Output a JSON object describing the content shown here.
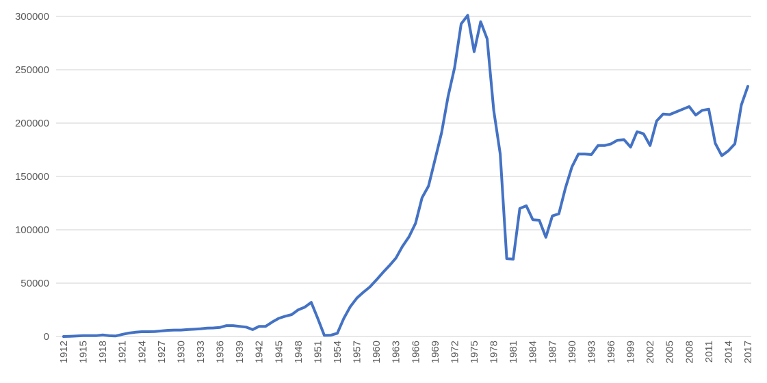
{
  "chart_data": {
    "type": "line",
    "title": "",
    "xlabel": "",
    "ylabel": "",
    "ylim": [
      0,
      300000
    ],
    "yticks": [
      0,
      50000,
      100000,
      150000,
      200000,
      250000,
      300000
    ],
    "xtick_step": 3,
    "grid": "horizontal",
    "legend": "none",
    "line_color": "#4472C4",
    "grid_color": "#D9D9D9",
    "x": [
      1912,
      1913,
      1914,
      1915,
      1916,
      1917,
      1918,
      1919,
      1920,
      1921,
      1922,
      1923,
      1924,
      1925,
      1926,
      1927,
      1928,
      1929,
      1930,
      1931,
      1932,
      1933,
      1934,
      1935,
      1936,
      1937,
      1938,
      1939,
      1940,
      1941,
      1942,
      1943,
      1944,
      1945,
      1946,
      1947,
      1948,
      1949,
      1950,
      1951,
      1952,
      1953,
      1954,
      1955,
      1956,
      1957,
      1958,
      1959,
      1960,
      1961,
      1962,
      1963,
      1964,
      1965,
      1966,
      1967,
      1968,
      1969,
      1970,
      1971,
      1972,
      1973,
      1974,
      1975,
      1976,
      1977,
      1978,
      1979,
      1980,
      1981,
      1982,
      1983,
      1984,
      1985,
      1986,
      1987,
      1988,
      1989,
      1990,
      1991,
      1992,
      1993,
      1994,
      1995,
      1996,
      1997,
      1998,
      1999,
      2000,
      2001,
      2002,
      2003,
      2004,
      2005,
      2006,
      2007,
      2008,
      2009,
      2010,
      2011,
      2012,
      2013,
      2014,
      2015,
      2016,
      2017
    ],
    "series": [
      {
        "values": [
          0,
          200,
          500,
          800,
          800,
          800,
          1500,
          700,
          500,
          2000,
          3200,
          4000,
          4500,
          4500,
          4600,
          5200,
          5800,
          6000,
          6000,
          6500,
          6800,
          7200,
          7800,
          8000,
          8500,
          10200,
          10200,
          9500,
          8800,
          6500,
          9500,
          9500,
          13500,
          17000,
          19000,
          20500,
          25000,
          27500,
          32000,
          17000,
          1000,
          1200,
          3000,
          17000,
          28000,
          36000,
          41500,
          46500,
          53000,
          60000,
          66500,
          73500,
          84500,
          93500,
          106000,
          130000,
          141000,
          166000,
          191000,
          225000,
          252000,
          293000,
          301000,
          267000,
          295000,
          279000,
          212000,
          171000,
          73000,
          72500,
          120000,
          122500,
          109500,
          109000,
          93000,
          113000,
          115000,
          139000,
          159000,
          171000,
          171000,
          170500,
          179000,
          179000,
          180500,
          184000,
          184500,
          177500,
          192000,
          190000,
          179000,
          202000,
          208500,
          208000,
          210500,
          213000,
          215500,
          207500,
          212000,
          213000,
          181000,
          169500,
          174000,
          180500,
          217000,
          234500
        ]
      }
    ]
  }
}
